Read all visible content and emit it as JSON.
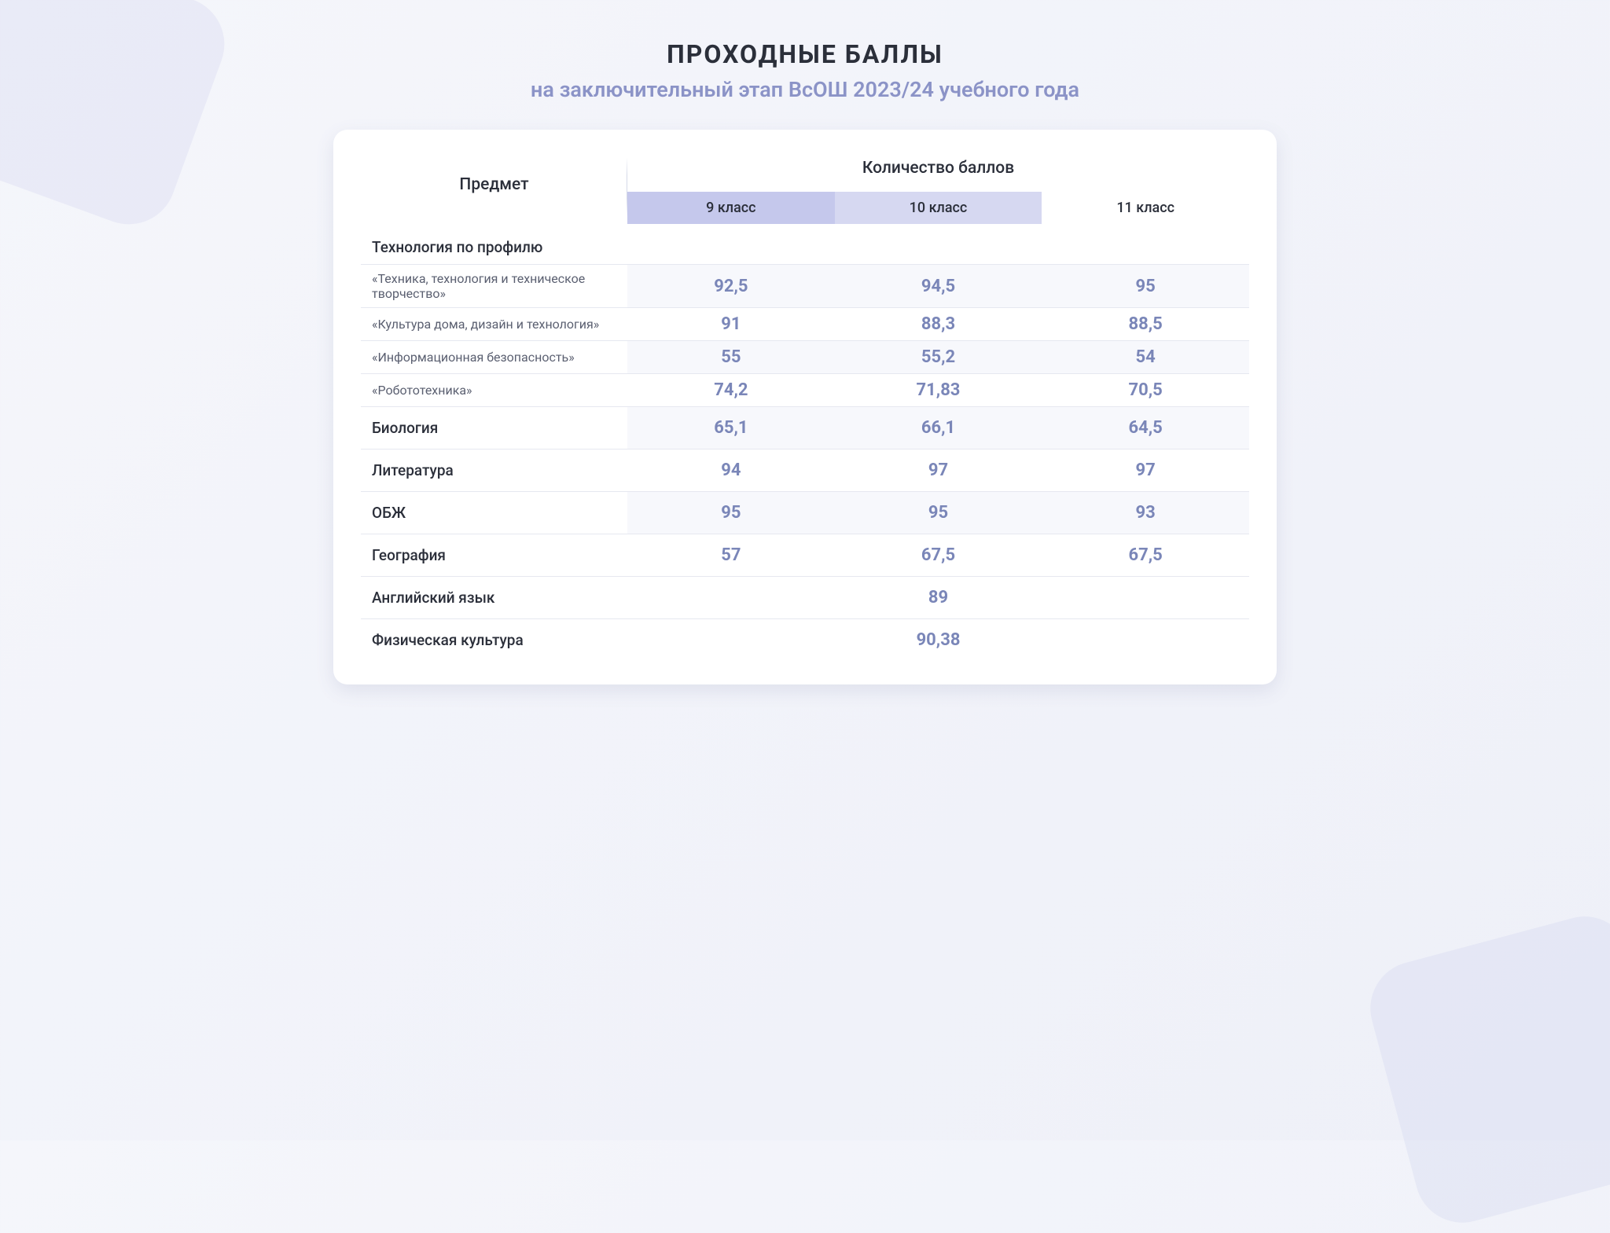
{
  "title": "ПРОХОДНЫЕ БАЛЛЫ",
  "subtitle": "на заключительный этап ВсОШ 2023/24 учебного года",
  "colors": {
    "page_bg_start": "#f5f6fb",
    "page_bg_end": "#eef0f8",
    "card_bg": "#ffffff",
    "title_color": "#2b2f3a",
    "subtitle_color": "#8b93c7",
    "score_color": "#7a86b8",
    "grade_hdr_1": "#c5c8ec",
    "grade_hdr_2": "#d6d8f1",
    "grade_hdr_3": "#ffffff",
    "row_alt_bg": "#f7f8fc",
    "border_color": "#e6e8f0"
  },
  "table": {
    "type": "table",
    "columns": {
      "subject": "Предмет",
      "scores_group": "Количество баллов",
      "grades": [
        "9 класс",
        "10 класс",
        "11 класс"
      ]
    },
    "rows": [
      {
        "kind": "group",
        "label": "Технология по профилю"
      },
      {
        "kind": "sub",
        "alt": true,
        "label": "«Техника, технология и техническое творчество»",
        "scores": [
          "92,5",
          "94,5",
          "95"
        ]
      },
      {
        "kind": "sub",
        "alt": false,
        "label": "«Культура дома, дизайн и технология»",
        "scores": [
          "91",
          "88,3",
          "88,5"
        ]
      },
      {
        "kind": "sub",
        "alt": true,
        "label": "«Информационная безопасность»",
        "scores": [
          "55",
          "55,2",
          "54"
        ]
      },
      {
        "kind": "sub",
        "alt": false,
        "label": "«Робототехника»",
        "scores": [
          "74,2",
          "71,83",
          "70,5"
        ]
      },
      {
        "kind": "subject",
        "alt": true,
        "label": "Биология",
        "scores": [
          "65,1",
          "66,1",
          "64,5"
        ]
      },
      {
        "kind": "subject",
        "alt": false,
        "label": "Литература",
        "scores": [
          "94",
          "97",
          "97"
        ]
      },
      {
        "kind": "subject",
        "alt": true,
        "label": "ОБЖ",
        "scores": [
          "95",
          "95",
          "93"
        ]
      },
      {
        "kind": "subject",
        "alt": false,
        "label": "География",
        "scores": [
          "57",
          "67,5",
          "67,5"
        ]
      },
      {
        "kind": "merged",
        "alt": false,
        "label": "Английский язык",
        "merged_score": "89"
      },
      {
        "kind": "merged",
        "alt": false,
        "label": "Физическая культура",
        "merged_score": "90,38"
      }
    ]
  }
}
